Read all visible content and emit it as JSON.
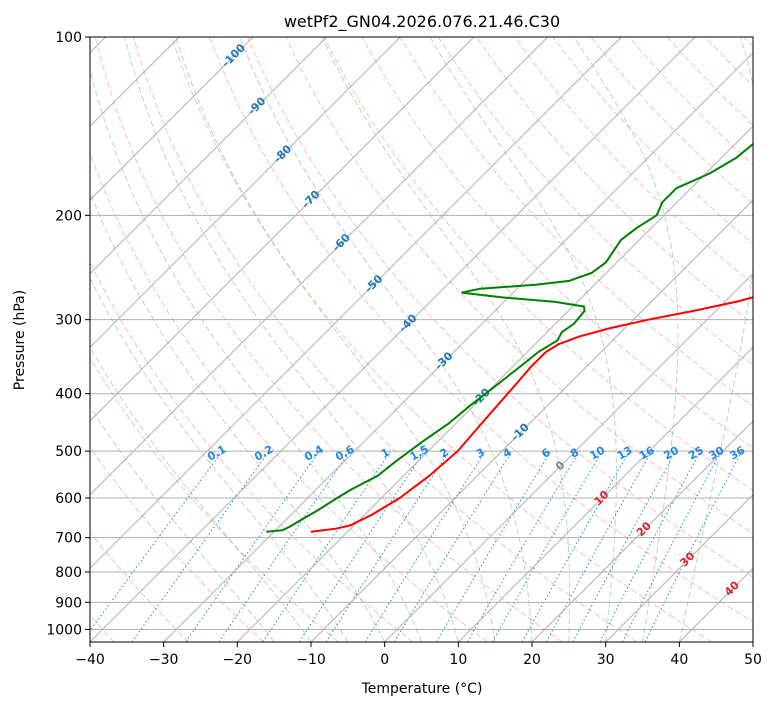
{
  "chart_data": {
    "type": "skew-t",
    "title": "wetPf2_GN04.2026.076.21.46.C30",
    "xlabel": "Temperature (°C)",
    "ylabel": "Pressure (hPa)",
    "xlim": [
      -40,
      50
    ],
    "ylim": [
      1050,
      100
    ],
    "x_ticks": [
      "−40",
      "−30",
      "−20",
      "−10",
      "0",
      "10",
      "20",
      "30",
      "40",
      "50"
    ],
    "y_ticks": [
      "100",
      "200",
      "300",
      "400",
      "500",
      "600",
      "700",
      "800",
      "900",
      "1000"
    ],
    "grid": true,
    "colors": {
      "temperature": "#ff0000",
      "dewpoint": "#008000",
      "dry_adiabats": "#fa8072",
      "moist_adiabats": "#8fbc8f",
      "mixing_ratio": "#1e88e5",
      "isotherm_labels": "#1f77b4",
      "isotherm_labels_warm": "#d62728",
      "isotherm_zero": "#7f7f7f"
    },
    "temperature_profile": {
      "name": "Temperature",
      "points": [
        [
          684,
          -25.0
        ],
        [
          676,
          -22.0
        ],
        [
          667,
          -20.5
        ],
        [
          640,
          -19.0
        ],
        [
          600,
          -17.5
        ],
        [
          550,
          -16.5
        ],
        [
          500,
          -16.0
        ],
        [
          450,
          -16.5
        ],
        [
          400,
          -17.0
        ],
        [
          360,
          -17.5
        ],
        [
          340,
          -17.5
        ],
        [
          330,
          -16.8
        ],
        [
          320,
          -15.0
        ],
        [
          310,
          -12.0
        ],
        [
          300,
          -8.0
        ],
        [
          290,
          -3.0
        ],
        [
          280,
          1.5
        ],
        [
          270,
          5.0
        ],
        [
          260,
          7.5
        ],
        [
          250,
          9.0
        ],
        [
          240,
          10.8
        ],
        [
          230,
          12.5
        ],
        [
          220,
          14.2
        ],
        [
          210,
          16.0
        ],
        [
          200,
          18.0
        ],
        [
          190,
          20.0
        ],
        [
          180,
          22.0
        ],
        [
          170,
          23.8
        ],
        [
          160,
          25.5
        ],
        [
          150,
          27.0
        ],
        [
          140,
          28.5
        ],
        [
          130,
          30.0
        ],
        [
          120,
          31.0
        ],
        [
          110,
          32.3
        ],
        [
          100,
          33.5
        ]
      ]
    },
    "dewpoint_profile": {
      "name": "Dewpoint",
      "points": [
        [
          684,
          -31.0
        ],
        [
          680,
          -29.0
        ],
        [
          670,
          -28.5
        ],
        [
          650,
          -27.8
        ],
        [
          630,
          -27.0
        ],
        [
          600,
          -26.0
        ],
        [
          580,
          -25.2
        ],
        [
          550,
          -23.5
        ],
        [
          520,
          -23.0
        ],
        [
          500,
          -22.5
        ],
        [
          480,
          -22.0
        ],
        [
          450,
          -21.0
        ],
        [
          420,
          -20.5
        ],
        [
          400,
          -20.0
        ],
        [
          380,
          -19.5
        ],
        [
          360,
          -19.0
        ],
        [
          340,
          -18.5
        ],
        [
          325,
          -17.5
        ],
        [
          315,
          -18.0
        ],
        [
          305,
          -17.5
        ],
        [
          290,
          -17.8
        ],
        [
          285,
          -18.5
        ],
        [
          280,
          -23.0
        ],
        [
          275,
          -31.0
        ],
        [
          270,
          -37.0
        ],
        [
          266,
          -35.0
        ],
        [
          262,
          -28.0
        ],
        [
          258,
          -24.0
        ],
        [
          250,
          -22.0
        ],
        [
          240,
          -21.5
        ],
        [
          230,
          -22.0
        ],
        [
          220,
          -22.5
        ],
        [
          210,
          -22.0
        ],
        [
          200,
          -21.0
        ],
        [
          190,
          -22.0
        ],
        [
          180,
          -22.0
        ],
        [
          170,
          -19.5
        ],
        [
          160,
          -18.0
        ],
        [
          150,
          -17.5
        ],
        [
          140,
          -17.0
        ],
        [
          130,
          -17.0
        ],
        [
          120,
          -16.8
        ],
        [
          110,
          -16.5
        ],
        [
          100,
          -16.0
        ]
      ]
    },
    "isotherm_labels": [
      "-100",
      "-90",
      "-80",
      "-70",
      "-60",
      "-50",
      "-40",
      "-30",
      "-20",
      "-10",
      "0",
      "10",
      "20",
      "30",
      "40"
    ],
    "mixing_ratio_labels": [
      "0.1",
      "0.2",
      "0.4",
      "0.6",
      "1",
      "1.5",
      "2",
      "3",
      "4",
      "6",
      "8",
      "10",
      "13",
      "16",
      "20",
      "25",
      "30",
      "36"
    ]
  }
}
